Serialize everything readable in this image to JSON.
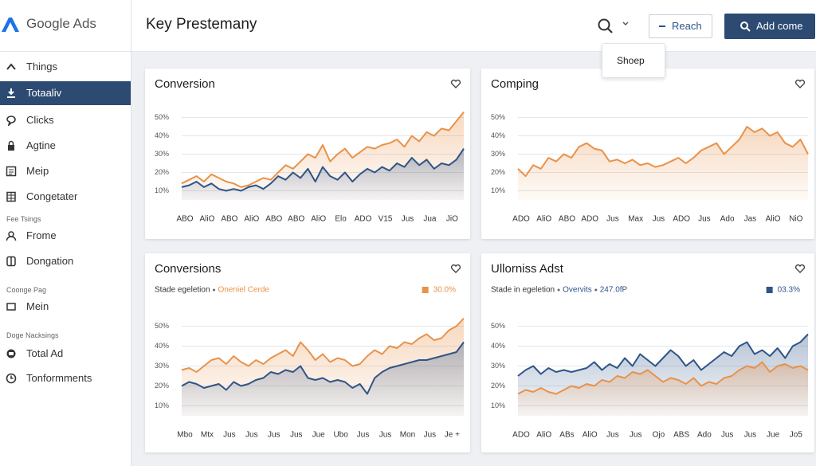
{
  "sidebar": {
    "logo": "Google Ads",
    "nav": [
      "Things",
      "Totaaliv",
      "Clicks",
      "Agtine",
      "Meip",
      "Congetater"
    ],
    "groups": [
      {
        "heading": "Fee Tsings",
        "items": [
          "Frome",
          "Dongation"
        ]
      },
      {
        "heading": "Coonge Pag",
        "items": [
          "Mein"
        ]
      },
      {
        "heading": "Doge Nacksings",
        "items": [
          "Total Ad",
          "Tonformments"
        ]
      }
    ]
  },
  "header": {
    "title": "Key Prestemany",
    "reach_button": "Reach",
    "add_button": "Add come",
    "dropdown": "Shoep"
  },
  "chart_data": [
    {
      "type": "area",
      "title": "Conversion",
      "categories": [
        "ABO",
        null,
        null,
        "AliO",
        null,
        null,
        "ABO",
        null,
        null,
        "AliO",
        null,
        null,
        "ABO",
        null,
        null,
        "ABO",
        null,
        null,
        "AliO",
        null,
        null,
        "Elo",
        null,
        null,
        "ADO",
        null,
        null,
        "V15",
        null,
        null,
        "Jus",
        null,
        null,
        "Jua",
        null,
        null,
        "JiO",
        null,
        null
      ],
      "series": [
        {
          "color": "#e8924a",
          "values": [
            14,
            16,
            18,
            15,
            19,
            17,
            15,
            14,
            12,
            13,
            15,
            17,
            16,
            20,
            24,
            22,
            26,
            30,
            28,
            35,
            26,
            30,
            33,
            28,
            31,
            34,
            33,
            35,
            36,
            38,
            34,
            40,
            37,
            42,
            40,
            44,
            43,
            48,
            53
          ]
        },
        {
          "color": "#2f5488",
          "values": [
            12,
            13,
            15,
            12,
            14,
            11,
            10,
            11,
            10,
            12,
            13,
            11,
            14,
            18,
            16,
            20,
            17,
            22,
            15,
            23,
            18,
            16,
            20,
            15,
            19,
            22,
            20,
            23,
            21,
            25,
            23,
            28,
            24,
            27,
            22,
            25,
            24,
            27,
            33
          ]
        }
      ],
      "ylim": [
        5,
        55
      ],
      "yticks": [
        {
          "value": 10,
          "label": "10%"
        },
        {
          "value": 20,
          "label": "20%"
        },
        {
          "value": 30,
          "label": "30%"
        },
        {
          "value": 40,
          "label": "40%"
        },
        {
          "value": 50,
          "label": "50%"
        }
      ],
      "grid": true
    },
    {
      "type": "area",
      "title": "Comping",
      "categories": [
        "ADO",
        null,
        null,
        "AliO",
        null,
        null,
        "ABO",
        null,
        null,
        "ADO",
        null,
        null,
        "Jus",
        null,
        null,
        "Max",
        null,
        null,
        "Jus",
        null,
        null,
        "ADO",
        null,
        null,
        "Jus",
        null,
        null,
        "Ado",
        null,
        null,
        "Jas",
        null,
        null,
        "AliO",
        null,
        null,
        "NiO",
        null,
        null
      ],
      "series": [
        {
          "color": "#e8924a",
          "values": [
            22,
            18,
            24,
            22,
            28,
            26,
            30,
            28,
            34,
            36,
            33,
            32,
            26,
            27,
            25,
            27,
            24,
            25,
            23,
            24,
            26,
            28,
            25,
            28,
            32,
            34,
            36,
            30,
            34,
            38,
            45,
            42,
            44,
            40,
            42,
            36,
            34,
            38,
            30
          ]
        }
      ],
      "ylim": [
        5,
        55
      ],
      "yticks": [
        {
          "value": 10,
          "label": "10%"
        },
        {
          "value": 20,
          "label": "20%"
        },
        {
          "value": 30,
          "label": "30%"
        },
        {
          "value": 40,
          "label": "40%"
        },
        {
          "value": 50,
          "label": "50%"
        }
      ],
      "grid": true
    },
    {
      "type": "area",
      "title": "Conversions",
      "subtitle": "Stade egeletion",
      "badge": "30.0%",
      "legend": "top-right",
      "categories": [
        "Mbo",
        null,
        null,
        "Mtx",
        null,
        null,
        "Jus",
        null,
        null,
        "Jus",
        null,
        null,
        "Jus",
        null,
        null,
        "Jus",
        null,
        null,
        "Jue",
        null,
        null,
        "Ubo",
        null,
        null,
        "Jus",
        null,
        null,
        "Jus",
        null,
        null,
        "Mon",
        null,
        null,
        "Jus",
        null,
        null,
        "Je +",
        null,
        null
      ],
      "series": [
        {
          "name": "Oneniel Cerde",
          "color": "#e8924a",
          "values": [
            28,
            29,
            27,
            30,
            33,
            34,
            31,
            35,
            32,
            30,
            33,
            31,
            34,
            36,
            38,
            35,
            42,
            38,
            33,
            36,
            32,
            34,
            33,
            30,
            31,
            35,
            38,
            36,
            40,
            39,
            42,
            41,
            44,
            46,
            43,
            44,
            48,
            50,
            54
          ]
        },
        {
          "color": "#2f5488",
          "values": [
            20,
            22,
            21,
            19,
            20,
            21,
            18,
            22,
            20,
            21,
            23,
            24,
            27,
            26,
            28,
            27,
            30,
            24,
            23,
            24,
            22,
            23,
            22,
            19,
            21,
            16,
            24,
            27,
            29,
            30,
            31,
            32,
            33,
            33,
            34,
            35,
            36,
            37,
            42
          ]
        }
      ],
      "ylim": [
        5,
        55
      ],
      "yticks": [
        {
          "value": 10,
          "label": "10%"
        },
        {
          "value": 20,
          "label": "20%"
        },
        {
          "value": 30,
          "label": "30%"
        },
        {
          "value": 40,
          "label": "40%"
        },
        {
          "value": 50,
          "label": "50%"
        }
      ],
      "grid": true
    },
    {
      "type": "area",
      "title": "Ullorniss Adst",
      "subtitle": "Stade in egeletion",
      "note": "247.0fP",
      "badge": "03.3%",
      "legend": "top-right",
      "categories": [
        "ADO",
        null,
        null,
        "AliO",
        null,
        null,
        "ABs",
        null,
        null,
        "AliO",
        null,
        null,
        "Jus",
        null,
        null,
        "Jus",
        null,
        null,
        "Ojo",
        null,
        null,
        "ABS",
        null,
        null,
        "Ado",
        null,
        null,
        "Jus",
        null,
        null,
        "Jus",
        null,
        null,
        "Jue",
        null,
        null,
        "Jo5",
        null,
        null
      ],
      "series": [
        {
          "name": "Overvits",
          "color": "#2f5488",
          "values": [
            25,
            28,
            30,
            26,
            29,
            27,
            28,
            27,
            28,
            29,
            32,
            28,
            31,
            29,
            34,
            30,
            36,
            33,
            30,
            34,
            38,
            35,
            30,
            33,
            28,
            31,
            34,
            37,
            35,
            40,
            42,
            36,
            38,
            35,
            39,
            34,
            40,
            42,
            46
          ]
        },
        {
          "color": "#e8924a",
          "values": [
            16,
            18,
            17,
            19,
            17,
            16,
            18,
            20,
            19,
            21,
            20,
            23,
            22,
            25,
            24,
            27,
            26,
            28,
            25,
            22,
            24,
            23,
            21,
            24,
            20,
            22,
            21,
            24,
            25,
            28,
            30,
            29,
            32,
            27,
            30,
            31,
            29,
            30,
            28
          ]
        }
      ],
      "ylim": [
        5,
        55
      ],
      "yticks": [
        {
          "value": 10,
          "label": "10%"
        },
        {
          "value": 20,
          "label": "20%"
        },
        {
          "value": 30,
          "label": "30%"
        },
        {
          "value": 40,
          "label": "40%"
        },
        {
          "value": 50,
          "label": "50%"
        }
      ],
      "grid": true
    }
  ]
}
